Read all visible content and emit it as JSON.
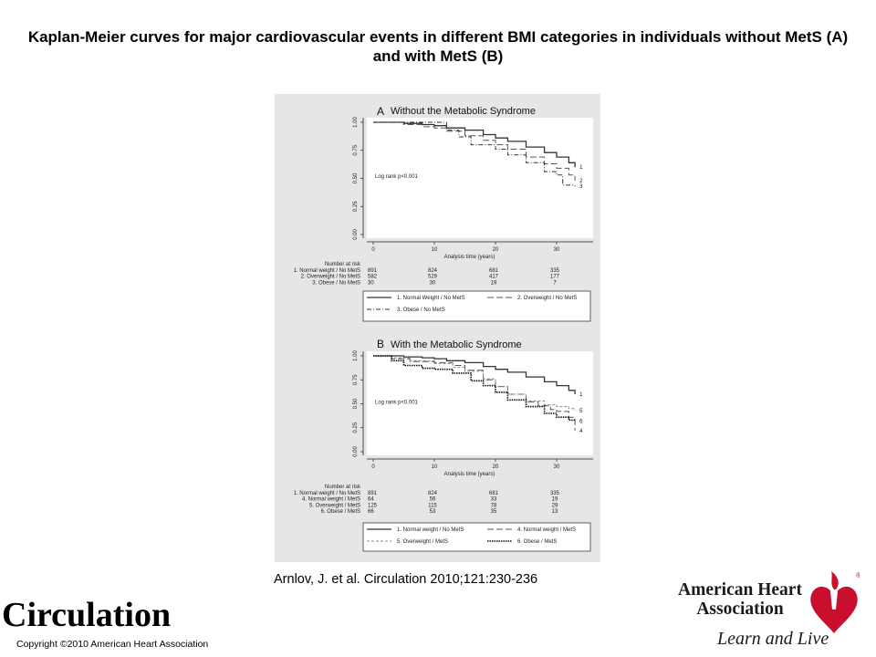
{
  "slide": {
    "title": "Kaplan-Meier curves for major cardiovascular events in different BMI categories in individuals without MetS (A) and with MetS (B)",
    "citation": "Arnlov, J. et al. Circulation 2010;121:230-236",
    "journal": "Circulation",
    "copyright": "Copyright ©2010 American Heart Association",
    "aha_name": "American Heart Association",
    "aha_tagline": "Learn and Live",
    "aha_red": "#c8102e"
  },
  "chart_data": [
    {
      "type": "line",
      "panel_letter": "A",
      "title": "Without the Metabolic Syndrome",
      "xlabel": "Analysis time (years)",
      "ylabel": "",
      "xlim": [
        0,
        35
      ],
      "ylim": [
        0,
        1
      ],
      "xticks": [
        "0",
        "10",
        "20",
        "30"
      ],
      "yticks": [
        "0.00",
        "0.25",
        "0.50",
        "0.75",
        "1.00"
      ],
      "annotation": "Log rank p<0.001",
      "grid": false,
      "series": [
        {
          "name": "1. Normal Weight / No MetS",
          "label": "1",
          "style": "solid",
          "x": [
            0,
            5,
            8,
            10,
            12,
            15,
            18,
            20,
            22,
            25,
            28,
            30,
            32,
            33
          ],
          "y": [
            1.0,
            0.99,
            0.98,
            0.97,
            0.95,
            0.93,
            0.89,
            0.86,
            0.83,
            0.78,
            0.73,
            0.69,
            0.64,
            0.6
          ]
        },
        {
          "name": "2. Overweight / No MetS",
          "label": "2",
          "style": "longdash",
          "x": [
            0,
            5,
            8,
            10,
            12,
            15,
            18,
            20,
            22,
            25,
            28,
            30,
            32,
            33
          ],
          "y": [
            1.0,
            0.98,
            0.96,
            0.95,
            0.92,
            0.88,
            0.84,
            0.8,
            0.76,
            0.69,
            0.63,
            0.59,
            0.53,
            0.48
          ]
        },
        {
          "name": "3. Obese / No MetS",
          "label": "3",
          "style": "dashdot",
          "x": [
            0,
            6,
            10,
            12,
            14,
            16,
            20,
            22,
            25,
            28,
            30,
            31,
            33
          ],
          "y": [
            1.0,
            1.0,
            1.0,
            0.93,
            0.87,
            0.8,
            0.76,
            0.71,
            0.64,
            0.56,
            0.53,
            0.44,
            0.43
          ]
        }
      ],
      "number_at_risk": {
        "heading": "Number at risk",
        "rows": [
          {
            "label": "1. Normal weight / No MetS",
            "values": [
              "891",
              "824",
              "681",
              "335"
            ]
          },
          {
            "label": "2. Overweight / No MetS",
            "values": [
              "582",
              "529",
              "417",
              "177"
            ]
          },
          {
            "label": "3. Obese / No MetS",
            "values": [
              "30",
              "30",
              "19",
              "7"
            ]
          }
        ]
      },
      "legend": [
        {
          "text": "1. Normal Weight / No MetS",
          "style": "solid"
        },
        {
          "text": "2. Overweight / No MetS",
          "style": "longdash"
        },
        {
          "text": "3. Obese / No MetS",
          "style": "dashdot"
        }
      ]
    },
    {
      "type": "line",
      "panel_letter": "B",
      "title": "With the Metabolic Syndrome",
      "xlabel": "Analysis time (years)",
      "ylabel": "",
      "xlim": [
        0,
        35
      ],
      "ylim": [
        0,
        1
      ],
      "xticks": [
        "0",
        "10",
        "20",
        "30"
      ],
      "yticks": [
        "0.00",
        "0.25",
        "0.50",
        "0.75",
        "1.00"
      ],
      "annotation": "Log rank p<0.001",
      "grid": false,
      "series": [
        {
          "name": "1. Normal weight / No MetS",
          "label": "1",
          "style": "solid",
          "x": [
            0,
            5,
            8,
            10,
            12,
            15,
            18,
            20,
            22,
            25,
            28,
            30,
            32,
            33
          ],
          "y": [
            1.0,
            0.99,
            0.98,
            0.97,
            0.95,
            0.93,
            0.89,
            0.86,
            0.83,
            0.78,
            0.73,
            0.69,
            0.64,
            0.6
          ]
        },
        {
          "name": "4. Normal weight / MetS",
          "label": "4",
          "style": "longdash",
          "x": [
            0,
            3,
            6,
            10,
            13,
            15,
            18,
            20,
            22,
            25,
            27,
            29,
            30,
            32,
            33
          ],
          "y": [
            1.0,
            0.97,
            0.94,
            0.93,
            0.9,
            0.85,
            0.75,
            0.68,
            0.6,
            0.52,
            0.48,
            0.44,
            0.42,
            0.36,
            0.22
          ]
        },
        {
          "name": "5. Overweight / MetS",
          "label": "5",
          "style": "shortdash",
          "x": [
            0,
            3,
            6,
            10,
            13,
            15,
            18,
            20,
            22,
            25,
            28,
            30,
            32,
            33
          ],
          "y": [
            1.0,
            0.98,
            0.95,
            0.92,
            0.88,
            0.84,
            0.76,
            0.68,
            0.6,
            0.53,
            0.49,
            0.47,
            0.45,
            0.43
          ]
        },
        {
          "name": "6. Obese / MetS",
          "label": "6",
          "style": "densedot",
          "x": [
            0,
            3,
            5,
            8,
            10,
            13,
            16,
            18,
            20,
            22,
            25,
            28,
            30,
            32,
            33
          ],
          "y": [
            1.0,
            0.95,
            0.9,
            0.87,
            0.86,
            0.82,
            0.74,
            0.69,
            0.62,
            0.54,
            0.47,
            0.4,
            0.36,
            0.33,
            0.32
          ]
        }
      ],
      "number_at_risk": {
        "heading": "Number at risk",
        "rows": [
          {
            "label": "1. Normal weight / No MetS",
            "values": [
              "891",
              "824",
              "681",
              "335"
            ]
          },
          {
            "label": "4. Normal weight / MetS",
            "values": [
              "64",
              "56",
              "33",
              "19"
            ]
          },
          {
            "label": "5. Overweight / MetS",
            "values": [
              "125",
              "115",
              "78",
              "29"
            ]
          },
          {
            "label": "6. Obese / MetS",
            "values": [
              "66",
              "53",
              "35",
              "13"
            ]
          }
        ]
      },
      "legend": [
        {
          "text": "1. Normal weight / No MetS",
          "style": "solid"
        },
        {
          "text": "4. Normal weight / MetS",
          "style": "longdash"
        },
        {
          "text": "5. Overweight / MetS",
          "style": "shortdash"
        },
        {
          "text": "6. Obese / MetS",
          "style": "densedot"
        }
      ]
    }
  ]
}
